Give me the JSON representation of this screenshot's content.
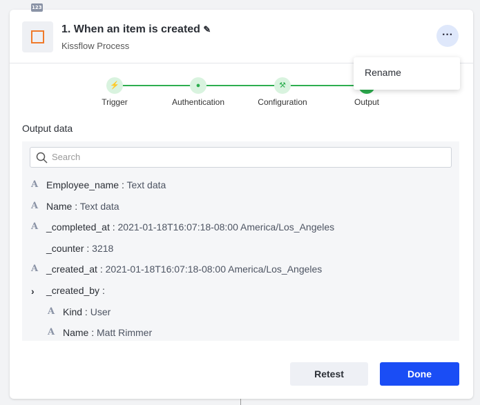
{
  "header": {
    "title": "1. When an item is created",
    "subtitle": "Kissflow Process"
  },
  "menu": {
    "items": [
      "Rename"
    ]
  },
  "steps": [
    "Trigger",
    "Authentication",
    "Configuration",
    "Output"
  ],
  "output": {
    "title": "Output data",
    "search_placeholder": "Search",
    "items": [
      {
        "icon": "A",
        "key": "Employee_name :",
        "value": "Text data",
        "level": 0
      },
      {
        "icon": "A",
        "key": "Name :",
        "value": "Text data",
        "level": 0
      },
      {
        "icon": "A",
        "key": "_completed_at :",
        "value": "2021-01-18T16:07:18-08:00 America/Los_Angeles",
        "level": 0
      },
      {
        "icon": "123",
        "key": "_counter :",
        "value": "3218",
        "level": 0
      },
      {
        "icon": "A",
        "key": "_created_at :",
        "value": "2021-01-18T16:07:18-08:00 America/Los_Angeles",
        "level": 0
      },
      {
        "key": "_created_by :",
        "level": 0,
        "expandable": true
      },
      {
        "icon": "A",
        "key": "Kind :",
        "value": "User",
        "level": 1
      },
      {
        "icon": "A",
        "key": "Name :",
        "value": "Matt Rimmer",
        "level": 1
      }
    ]
  },
  "buttons": {
    "retest": "Retest",
    "done": "Done"
  }
}
